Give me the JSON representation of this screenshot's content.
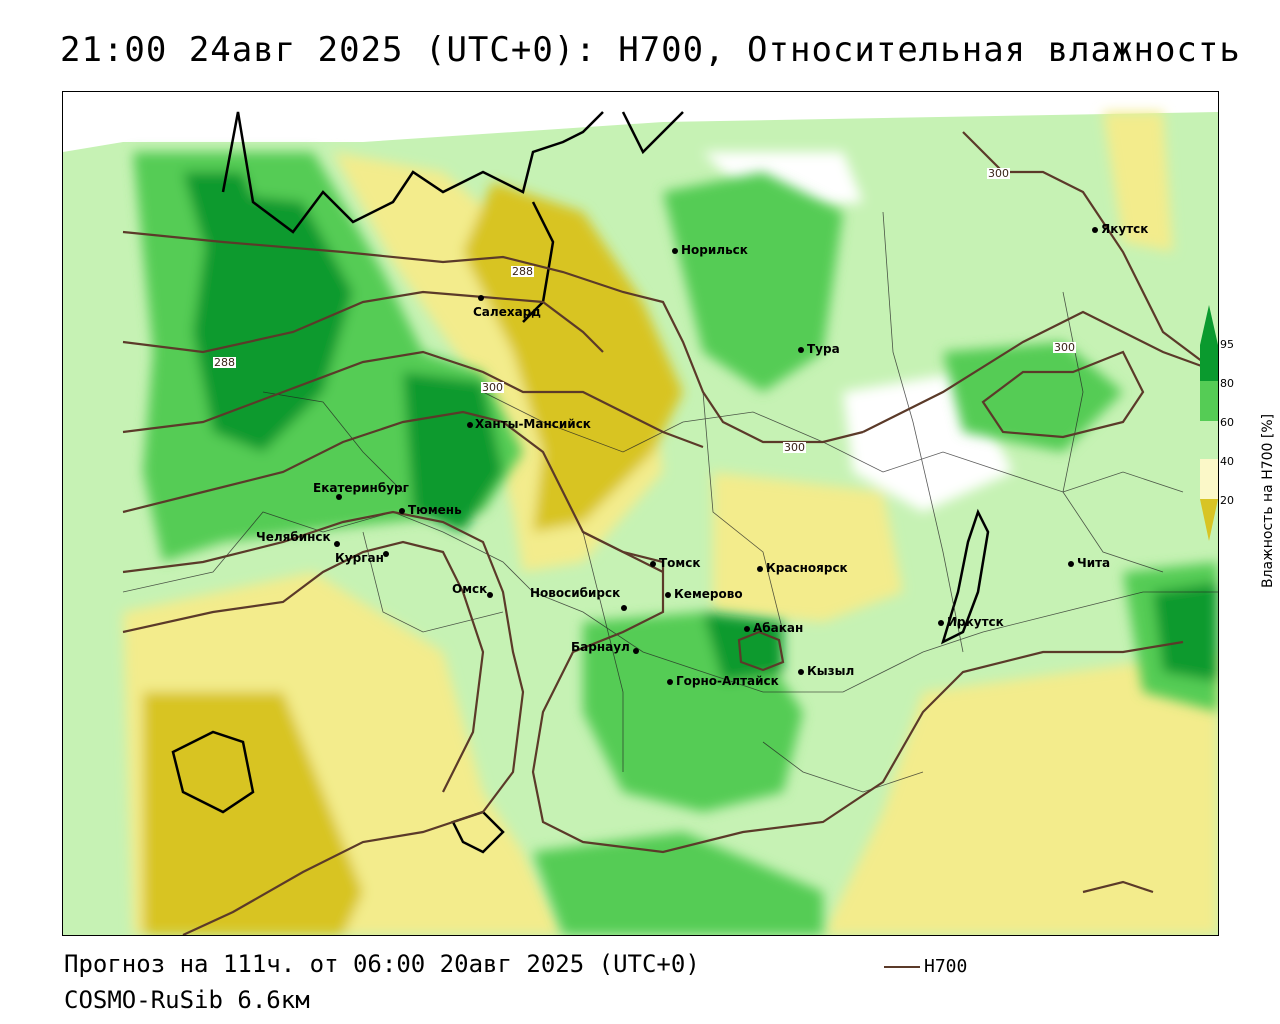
{
  "header": {
    "title": "21:00 24авг 2025 (UTC+0): H700, Относительная влажность"
  },
  "footer": {
    "forecast": "Прогноз на 111ч. от 06:00 20авг 2025 (UTC+0)",
    "model": "COSMO-RuSib 6.6км",
    "legend_label": "H700"
  },
  "colorbar": {
    "title": "Влажность на H700 [%]",
    "ticks": [
      "95",
      "80",
      "60",
      "40",
      "20"
    ],
    "colors": {
      "very_dry": "#d8c424",
      "dry": "#f3ec8c",
      "low": "#fbf8c8",
      "mid": "#ffffff",
      "moist": "#c6f2b4",
      "wet": "#55cc55",
      "very_wet": "#0a9a2e",
      "contour": "#5b3a29"
    }
  },
  "contour_labels": [
    "288",
    "288",
    "300",
    "300",
    "300",
    "300"
  ],
  "cities": [
    "Якутск",
    "Норильск",
    "Салехард",
    "Тура",
    "Ханты-Мансийск",
    "Екатеринбург",
    "Тюмень",
    "Челябинск",
    "Курган",
    "Омск",
    "Томск",
    "Красноярск",
    "Новосибирск",
    "Кемерово",
    "Абакан",
    "Иркутск",
    "Чита",
    "Барнаул",
    "Горно-Алтайск",
    "Кызыл"
  ]
}
